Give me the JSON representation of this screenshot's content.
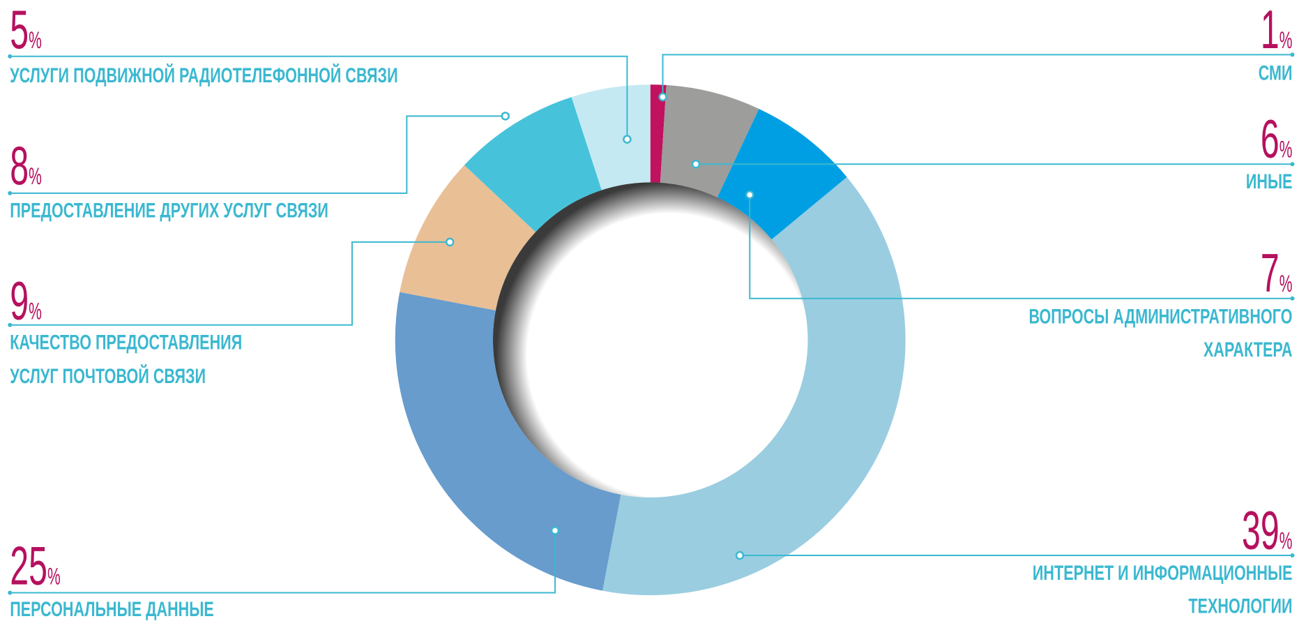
{
  "chart_data": {
    "type": "donut",
    "unit": "%",
    "categories": [
      [
        "СМИ"
      ],
      [
        "ИНЫЕ"
      ],
      [
        "ВОПРОСЫ АДМИНИСТРАТИВНОГО",
        "ХАРАКТЕРА"
      ],
      [
        "ИНТЕРНЕТ И ИНФОРМАЦИОННЫЕ",
        "ТЕХНОЛОГИИ"
      ],
      [
        "ПЕРСОНАЛЬНЫЕ ДАННЫЕ"
      ],
      [
        "КАЧЕСТВО ПРЕДОСТАВЛЕНИЯ",
        "УСЛУГ ПОЧТОВОЙ СВЯЗИ"
      ],
      [
        "ПРЕДОСТАВЛЕНИЕ ДРУГИХ УСЛУГ СВЯЗИ"
      ],
      [
        "УСЛУГИ ПОДВИЖНОЙ РАДИОТЕЛЕФОННОЙ СВЯЗИ"
      ]
    ],
    "values": [
      1,
      6,
      7,
      39,
      25,
      9,
      8,
      5
    ],
    "colors": [
      "#c0125f",
      "#9d9d9c",
      "#009fe3",
      "#9acde0",
      "#679ccd",
      "#e9bf96",
      "#46c3da",
      "#c5e9f3"
    ]
  }
}
